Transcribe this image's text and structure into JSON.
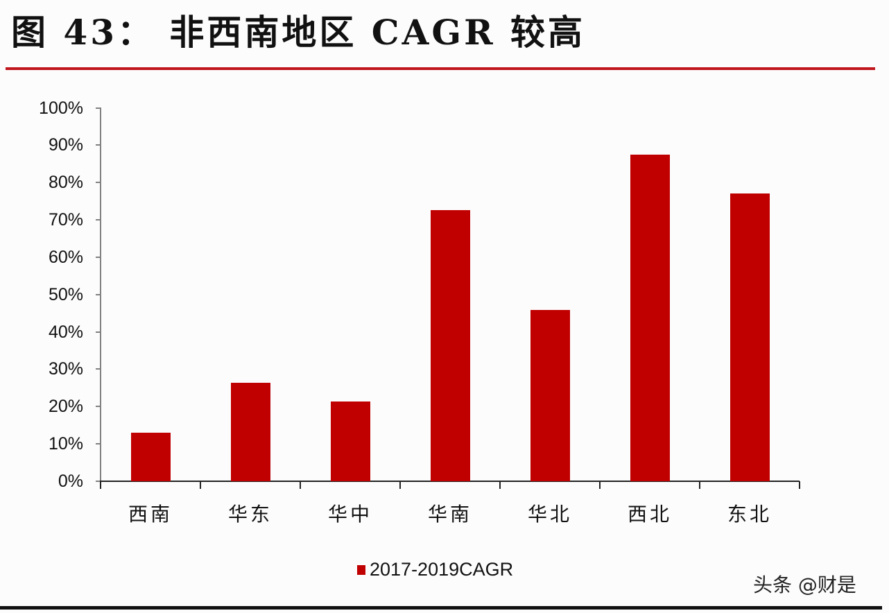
{
  "header": {
    "title": "图 43： 非西南地区 CAGR 较高"
  },
  "yaxis": {
    "ticks": [
      "100%",
      "90%",
      "80%",
      "70%",
      "60%",
      "50%",
      "40%",
      "30%",
      "20%",
      "10%",
      "0%"
    ]
  },
  "xaxis": {
    "labels": [
      "西南",
      "华东",
      "华中",
      "华南",
      "华北",
      "西北",
      "东北"
    ]
  },
  "legend": {
    "label": "2017-2019CAGR",
    "color": "#c00000"
  },
  "watermark": "头条 @财是",
  "chart_data": {
    "type": "bar",
    "title": "图 43： 非西南地区 CAGR 较高",
    "categories": [
      "西南",
      "华东",
      "华中",
      "华南",
      "华北",
      "西北",
      "东北"
    ],
    "series": [
      {
        "name": "2017-2019CAGR",
        "values": [
          13,
          26.4,
          21.4,
          72.7,
          45.9,
          87.5,
          77.1
        ],
        "color": "#c00000"
      }
    ],
    "xlabel": "",
    "ylabel": "",
    "ylim": [
      0,
      100
    ],
    "yticks": [
      "0%",
      "10%",
      "20%",
      "30%",
      "40%",
      "50%",
      "60%",
      "70%",
      "80%",
      "90%",
      "100%"
    ],
    "grid": false,
    "legend_position": "bottom"
  }
}
